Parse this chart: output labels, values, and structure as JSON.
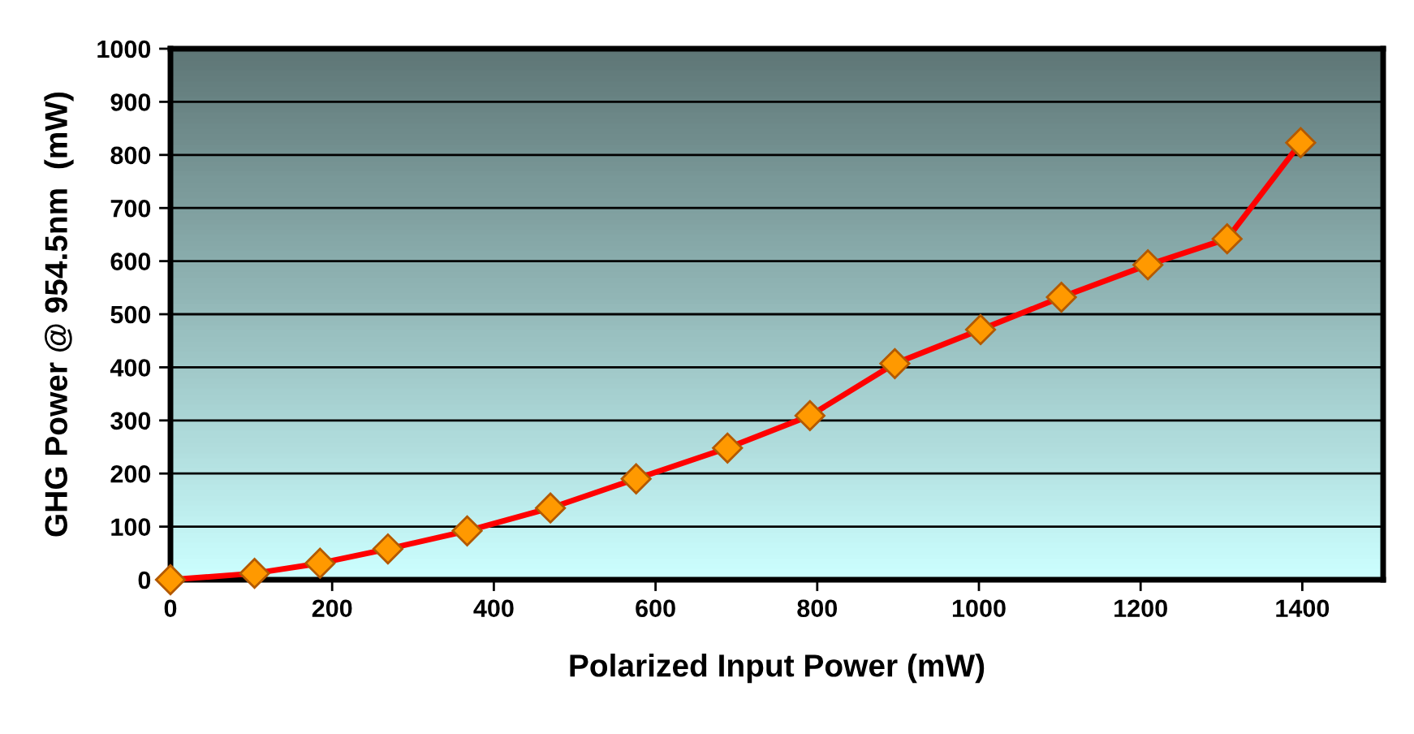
{
  "chart_data": {
    "type": "line",
    "xlabel": "Polarized Input Power (mW)",
    "ylabel": "GHG Power @ 954.5nm  (mW)",
    "x": [
      0,
      104,
      185,
      269,
      367,
      470,
      576,
      689,
      791,
      896,
      1002,
      1102,
      1209,
      1307,
      1398
    ],
    "series": [
      {
        "color": "#ff0000",
        "values": [
          0,
          12,
          31,
          58,
          92,
          135,
          190,
          248,
          309,
          407,
          471,
          532,
          593,
          642,
          823
        ]
      }
    ],
    "xlim": [
      0,
      1500
    ],
    "xticks": [
      0,
      200,
      400,
      600,
      800,
      1000,
      1200,
      1400
    ],
    "ylim": [
      0,
      1000
    ],
    "yticks": [
      0,
      100,
      200,
      300,
      400,
      500,
      600,
      700,
      800,
      900,
      1000
    ],
    "grid": "y",
    "marker": "diamond",
    "line_style": "solid",
    "legend": false
  }
}
